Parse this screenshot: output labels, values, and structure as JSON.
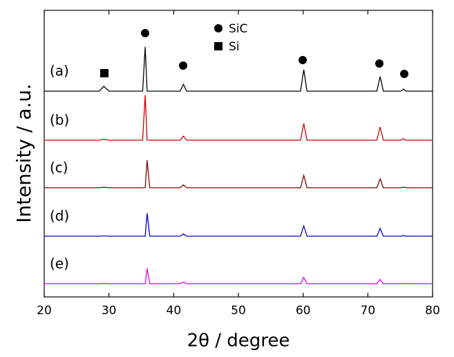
{
  "chart_data": {
    "type": "line",
    "x_label": "2θ / degree",
    "y_label": "Intensity / a.u.",
    "xlim": [
      20,
      80
    ],
    "xticks": [
      20,
      30,
      40,
      50,
      60,
      70,
      80
    ],
    "ylim": [
      0,
      100
    ],
    "phase_legend": [
      "SiC",
      "Si"
    ],
    "x": [
      20,
      28.5,
      29.2,
      30,
      35.2,
      35.6,
      35.9,
      36.3,
      41.0,
      41.5,
      42.0,
      59.6,
      60.1,
      60.6,
      71.4,
      71.9,
      72.4,
      75.1,
      75.5,
      75.9,
      80
    ],
    "series": [
      {
        "name": "(a)",
        "color": "#000000",
        "values": [
          71.8,
          71.8,
          73.5,
          71.8,
          71.8,
          87.2,
          71.8,
          71.8,
          71.8,
          74.2,
          71.8,
          71.8,
          79.3,
          71.8,
          71.8,
          76.9,
          71.8,
          71.8,
          72.5,
          71.8,
          71.8
        ]
      },
      {
        "name": "(b)",
        "color": "#cc0000",
        "values": [
          54.7,
          54.7,
          55.0,
          54.7,
          54.7,
          70.4,
          54.7,
          54.7,
          54.7,
          56.1,
          54.7,
          54.7,
          60.5,
          54.7,
          54.7,
          59.3,
          54.7,
          54.7,
          55.2,
          54.7,
          54.7
        ]
      },
      {
        "name": "(c)",
        "color": "#800000",
        "values": [
          38.1,
          38.1,
          38.3,
          38.1,
          38.1,
          38.1,
          47.7,
          38.1,
          38.1,
          39.1,
          38.1,
          38.1,
          42.4,
          38.1,
          38.1,
          41.2,
          38.1,
          38.1,
          38.3,
          38.1,
          38.1
        ]
      },
      {
        "name": "(d)",
        "color": "#0000cc",
        "values": [
          21.2,
          21.2,
          21.3,
          21.2,
          21.2,
          21.2,
          29.2,
          21.2,
          21.2,
          22.0,
          21.2,
          21.2,
          24.8,
          21.2,
          21.2,
          23.9,
          21.2,
          21.2,
          21.4,
          21.2,
          21.2
        ]
      },
      {
        "name": "(e)",
        "color": "#e000e0",
        "values": [
          4.6,
          4.6,
          4.7,
          4.6,
          4.6,
          4.6,
          9.9,
          4.6,
          4.6,
          5.2,
          4.6,
          4.6,
          6.8,
          4.6,
          4.6,
          6.1,
          4.6,
          4.6,
          4.7,
          4.6,
          4.6
        ]
      }
    ]
  }
}
